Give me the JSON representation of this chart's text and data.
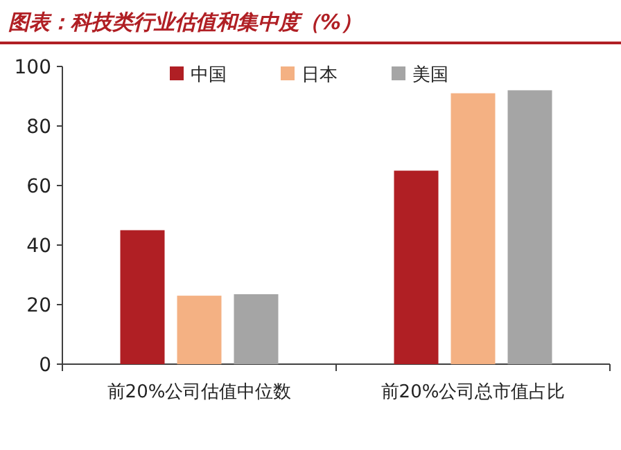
{
  "chart_data": {
    "type": "bar",
    "title": "图表：科技类行业估值和集中度（%）",
    "categories": [
      "前20%公司估值中位数",
      "前20%公司总市值占比"
    ],
    "series": [
      {
        "name": "中国",
        "color": "#b01f24",
        "values": [
          45,
          65
        ]
      },
      {
        "name": "日本",
        "color": "#f4b183",
        "values": [
          23,
          91
        ]
      },
      {
        "name": "美国",
        "color": "#a5a5a5",
        "values": [
          23.5,
          92
        ]
      }
    ],
    "ylim": [
      0,
      100
    ],
    "yticks": [
      0,
      20,
      40,
      60,
      80,
      100
    ],
    "legend": "top"
  }
}
